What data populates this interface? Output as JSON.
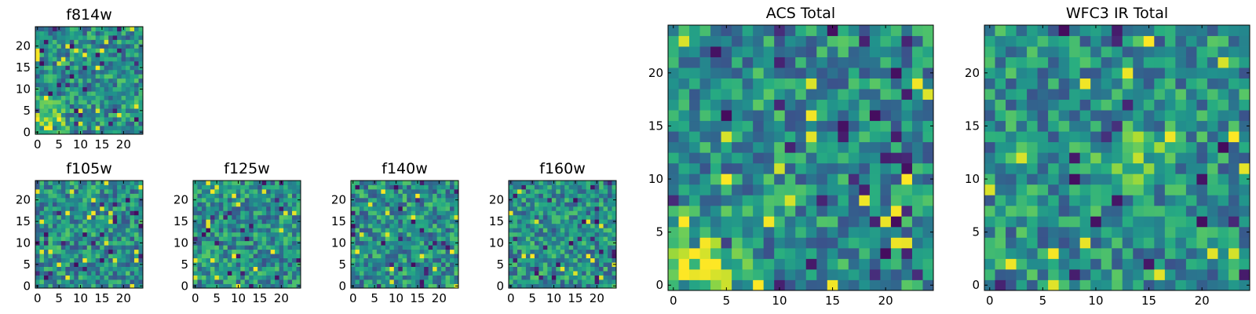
{
  "chart_data": [
    {
      "type": "heatmap",
      "title": "f814w",
      "rows": 25,
      "cols": 25,
      "xlim": [
        -0.5,
        24.5
      ],
      "ylim": [
        -0.5,
        24.5
      ],
      "xticks": [
        0,
        5,
        10,
        15,
        20
      ],
      "xtick_labels": [
        "0",
        "5",
        "10",
        "15",
        "20"
      ],
      "yticks": [
        0,
        5,
        10,
        15,
        20
      ],
      "ytick_labels": [
        "0",
        "5",
        "10",
        "15",
        "20"
      ],
      "colormap": "viridis",
      "seed": 11,
      "bright_corner": "lower-left"
    },
    {
      "type": "heatmap",
      "title": "f105w",
      "rows": 25,
      "cols": 25,
      "xlim": [
        -0.5,
        24.5
      ],
      "ylim": [
        -0.5,
        24.5
      ],
      "xticks": [
        0,
        5,
        10,
        15,
        20
      ],
      "xtick_labels": [
        "0",
        "5",
        "10",
        "15",
        "20"
      ],
      "yticks": [
        0,
        5,
        10,
        15,
        20
      ],
      "ytick_labels": [
        "0",
        "5",
        "10",
        "15",
        "20"
      ],
      "colormap": "viridis",
      "seed": 23,
      "bright_corner": "none"
    },
    {
      "type": "heatmap",
      "title": "f125w",
      "rows": 25,
      "cols": 25,
      "xlim": [
        -0.5,
        24.5
      ],
      "ylim": [
        -0.5,
        24.5
      ],
      "xticks": [
        0,
        5,
        10,
        15,
        20
      ],
      "xtick_labels": [
        "0",
        "5",
        "10",
        "15",
        "20"
      ],
      "yticks": [
        0,
        5,
        10,
        15,
        20
      ],
      "ytick_labels": [
        "0",
        "5",
        "10",
        "15",
        "20"
      ],
      "colormap": "viridis",
      "seed": 37,
      "bright_corner": "none"
    },
    {
      "type": "heatmap",
      "title": "f140w",
      "rows": 25,
      "cols": 25,
      "xlim": [
        -0.5,
        24.5
      ],
      "ylim": [
        -0.5,
        24.5
      ],
      "xticks": [
        0,
        5,
        10,
        15,
        20
      ],
      "xtick_labels": [
        "0",
        "5",
        "10",
        "15",
        "20"
      ],
      "yticks": [
        0,
        5,
        10,
        15,
        20
      ],
      "ytick_labels": [
        "0",
        "5",
        "10",
        "15",
        "20"
      ],
      "colormap": "viridis",
      "seed": 41,
      "bright_corner": "none"
    },
    {
      "type": "heatmap",
      "title": "f160w",
      "rows": 25,
      "cols": 25,
      "xlim": [
        -0.5,
        24.5
      ],
      "ylim": [
        -0.5,
        24.5
      ],
      "xticks": [
        0,
        5,
        10,
        15,
        20
      ],
      "xtick_labels": [
        "0",
        "5",
        "10",
        "15",
        "20"
      ],
      "yticks": [
        0,
        5,
        10,
        15,
        20
      ],
      "ytick_labels": [
        "0",
        "5",
        "10",
        "15",
        "20"
      ],
      "colormap": "viridis",
      "seed": 53,
      "bright_corner": "none"
    },
    {
      "type": "heatmap",
      "title": "ACS Total",
      "rows": 25,
      "cols": 25,
      "xlim": [
        -0.5,
        24.5
      ],
      "ylim": [
        -0.5,
        24.5
      ],
      "xticks": [
        0,
        5,
        10,
        15,
        20
      ],
      "xtick_labels": [
        "0",
        "5",
        "10",
        "15",
        "20"
      ],
      "yticks": [
        0,
        5,
        10,
        15,
        20
      ],
      "ytick_labels": [
        "0",
        "5",
        "10",
        "15",
        "20"
      ],
      "colormap": "viridis",
      "seed": 67,
      "bright_corner": "lower-left"
    },
    {
      "type": "heatmap",
      "title": "WFC3 IR Total",
      "rows": 25,
      "cols": 25,
      "xlim": [
        -0.5,
        24.5
      ],
      "ylim": [
        -0.5,
        24.5
      ],
      "xticks": [
        0,
        5,
        10,
        15,
        20
      ],
      "xtick_labels": [
        "0",
        "5",
        "10",
        "15",
        "20"
      ],
      "yticks": [
        0,
        5,
        10,
        15,
        20
      ],
      "ytick_labels": [
        "0",
        "5",
        "10",
        "15",
        "20"
      ],
      "colormap": "viridis",
      "seed": 79,
      "bright_corner": "center"
    }
  ]
}
